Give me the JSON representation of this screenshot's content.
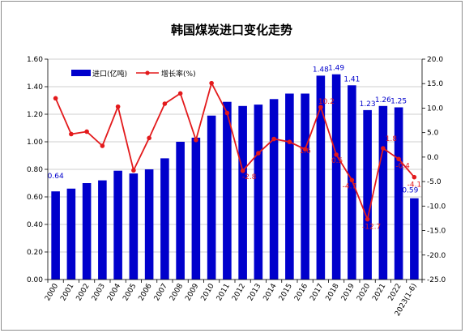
{
  "chart_data": {
    "type": "bar",
    "title": "韩国煤炭进口变化走势",
    "categories": [
      "2000",
      "2001",
      "2002",
      "2003",
      "2004",
      "2005",
      "2006",
      "2007",
      "2008",
      "2009",
      "2010",
      "2011",
      "2012",
      "2013",
      "2014",
      "2015",
      "2016",
      "2017",
      "2018",
      "2019",
      "2020",
      "2021",
      "2022",
      "2023(1-6)"
    ],
    "left_axis": {
      "min": 0,
      "max": 1.6,
      "step": 0.2,
      "tick_labels": [
        "0.00",
        "0.20",
        "0.40",
        "0.60",
        "0.80",
        "1.00",
        "1.20",
        "1.40",
        "1.60"
      ]
    },
    "right_axis": {
      "min": -25,
      "max": 20,
      "step": 5,
      "tick_labels": [
        "-25.0",
        "-20.0",
        "-15.0",
        "-10.0",
        "-5.0",
        "0.0",
        "5.0",
        "10.0",
        "15.0",
        "20.0"
      ]
    },
    "grid": true,
    "legend_position": "top-left",
    "series": [
      {
        "name": "进口(亿吨)",
        "type": "bar",
        "axis": "left",
        "color": "#0000cc",
        "values": [
          0.64,
          0.66,
          0.7,
          0.72,
          0.79,
          0.77,
          0.8,
          0.88,
          1.0,
          1.03,
          1.19,
          1.29,
          1.26,
          1.27,
          1.31,
          1.35,
          1.35,
          1.48,
          1.49,
          1.41,
          1.23,
          1.26,
          1.25,
          0.59
        ],
        "data_labels": [
          "0.64",
          null,
          null,
          null,
          null,
          null,
          null,
          null,
          null,
          null,
          null,
          null,
          null,
          null,
          null,
          null,
          null,
          "1.48",
          "1.49",
          "1.41",
          "1.23",
          "1.26",
          "1.25",
          "0.59"
        ]
      },
      {
        "name": "增长率(%)",
        "type": "line",
        "axis": "right",
        "color": "#e31a1c",
        "values": [
          12.0,
          4.7,
          5.2,
          2.3,
          10.3,
          -2.7,
          3.9,
          10.9,
          13.0,
          3.5,
          15.1,
          9.0,
          -2.8,
          0.8,
          3.7,
          3.1,
          1.6,
          10.2,
          0.5,
          -4.7,
          -12.7,
          1.8,
          -0.4,
          -4.1
        ],
        "data_labels": [
          null,
          null,
          null,
          null,
          null,
          null,
          null,
          null,
          null,
          null,
          null,
          null,
          "-2.8",
          null,
          null,
          null,
          "1.6",
          "10.2",
          "0.5",
          "-4.7",
          "-12.7",
          "1.8",
          "-0.4",
          "-4.1"
        ]
      }
    ]
  }
}
